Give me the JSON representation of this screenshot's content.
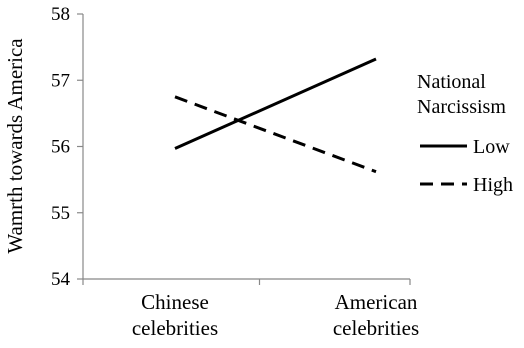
{
  "chart_data": {
    "type": "line",
    "title": "",
    "xlabel": "",
    "ylabel": "Wamrth towards America",
    "ylim": [
      54,
      58
    ],
    "yticks": [
      54,
      55,
      56,
      57,
      58
    ],
    "categories": [
      [
        "Chinese",
        "celebrities"
      ],
      [
        "American",
        "celebrities"
      ]
    ],
    "legend": {
      "title": [
        "National",
        "Narcissism"
      ],
      "placement": "right"
    },
    "grid": false,
    "series": [
      {
        "name": "Low",
        "values": [
          55.97,
          57.32
        ],
        "style": "solid",
        "color": "#000000"
      },
      {
        "name": "High",
        "values": [
          56.75,
          55.62
        ],
        "style": "dashed",
        "color": "#000000"
      }
    ]
  }
}
